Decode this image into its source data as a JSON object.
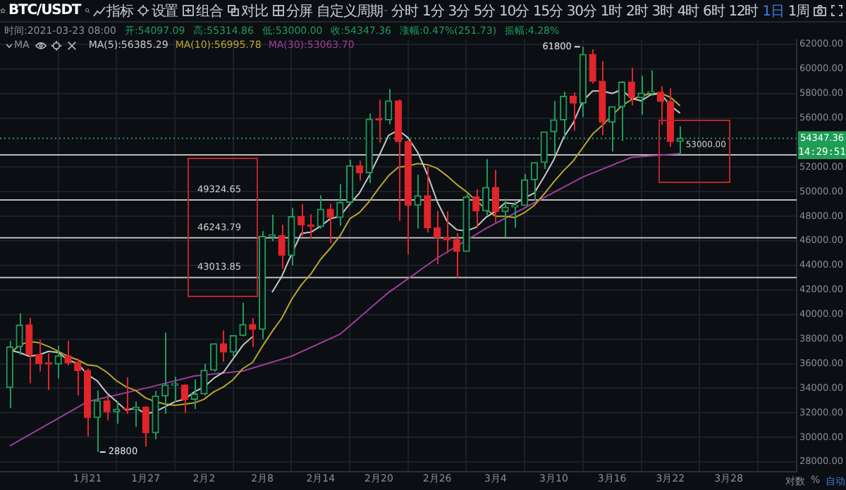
{
  "chart_data": {
    "type": "candlestick",
    "title": "BTC/USDT",
    "x": [
      "2021-01-13",
      "2021-01-14",
      "2021-01-15",
      "2021-01-16",
      "2021-01-17",
      "2021-01-18",
      "2021-01-19",
      "2021-01-20",
      "2021-01-21",
      "2021-01-22",
      "2021-01-23",
      "2021-01-24",
      "2021-01-25",
      "2021-01-26",
      "2021-01-27",
      "2021-01-28",
      "2021-01-29",
      "2021-01-30",
      "2021-01-31",
      "2021-02-01",
      "2021-02-02",
      "2021-02-03",
      "2021-02-04",
      "2021-02-05",
      "2021-02-06",
      "2021-02-07",
      "2021-02-08",
      "2021-02-09",
      "2021-02-10",
      "2021-02-11",
      "2021-02-12",
      "2021-02-13",
      "2021-02-14",
      "2021-02-15",
      "2021-02-16",
      "2021-02-17",
      "2021-02-18",
      "2021-02-19",
      "2021-02-20",
      "2021-02-21",
      "2021-02-22",
      "2021-02-23",
      "2021-02-24",
      "2021-02-25",
      "2021-02-26",
      "2021-02-27",
      "2021-02-28",
      "2021-03-01",
      "2021-03-02",
      "2021-03-03",
      "2021-03-04",
      "2021-03-05",
      "2021-03-06",
      "2021-03-07",
      "2021-03-08",
      "2021-03-09",
      "2021-03-10",
      "2021-03-11",
      "2021-03-12",
      "2021-03-13",
      "2021-03-14",
      "2021-03-15",
      "2021-03-16",
      "2021-03-17",
      "2021-03-18",
      "2021-03-19",
      "2021-03-20",
      "2021-03-21",
      "2021-03-22",
      "2021-03-23"
    ],
    "ohlc": [
      [
        34050,
        37850,
        32380,
        37371
      ],
      [
        37371,
        40100,
        36701,
        39144
      ],
      [
        39144,
        39747,
        34408,
        36742
      ],
      [
        36742,
        37950,
        35357,
        36016
      ],
      [
        36016,
        36852,
        33850,
        35965
      ],
      [
        35965,
        37469,
        34800,
        36642
      ],
      [
        36642,
        37850,
        35844,
        36070
      ],
      [
        36070,
        36415,
        33400,
        35442
      ],
      [
        35442,
        35600,
        30071,
        31613
      ],
      [
        31613,
        33826,
        28800,
        32985
      ],
      [
        32985,
        33456,
        31390,
        32068
      ],
      [
        32068,
        32944,
        31106,
        32289
      ],
      [
        32289,
        34876,
        31900,
        32254
      ],
      [
        32254,
        32921,
        30837,
        32467
      ],
      [
        32467,
        32557,
        29241,
        30366
      ],
      [
        30366,
        33783,
        29842,
        33364
      ],
      [
        33364,
        38531,
        31915,
        34252
      ],
      [
        34252,
        34934,
        32826,
        34262
      ],
      [
        34262,
        34342,
        32000,
        33092
      ],
      [
        33092,
        34717,
        32296,
        33526
      ],
      [
        33526,
        35984,
        33418,
        35466
      ],
      [
        35466,
        37662,
        35362,
        37618
      ],
      [
        37618,
        38708,
        36161,
        36936
      ],
      [
        36936,
        38310,
        36570,
        38290
      ],
      [
        38290,
        40955,
        38215,
        39186
      ],
      [
        39186,
        39700,
        37351,
        38795
      ],
      [
        38795,
        46794,
        37988,
        46374
      ],
      [
        46374,
        48142,
        45974,
        46420
      ],
      [
        46420,
        47310,
        43727,
        44807
      ],
      [
        44807,
        48678,
        43994,
        47969
      ],
      [
        47969,
        48985,
        46400,
        47287
      ],
      [
        47287,
        48150,
        46202,
        47153
      ],
      [
        47153,
        49707,
        47014,
        48577
      ],
      [
        48577,
        49010,
        45819,
        47911
      ],
      [
        47911,
        50620,
        47225,
        49133
      ],
      [
        49133,
        52618,
        48947,
        52119
      ],
      [
        52119,
        52530,
        50901,
        51552
      ],
      [
        51552,
        56368,
        50710,
        55906
      ],
      [
        55906,
        57500,
        54000,
        55841
      ],
      [
        55841,
        58352,
        55477,
        57408
      ],
      [
        57408,
        57508,
        47622,
        54087
      ],
      [
        54087,
        54183,
        44892,
        48891
      ],
      [
        48891,
        51374,
        47003,
        49677
      ],
      [
        49677,
        52041,
        46674,
        47073
      ],
      [
        47073,
        48424,
        44106,
        46276
      ],
      [
        46276,
        48395,
        45000,
        46106
      ],
      [
        46106,
        46638,
        43000,
        45135
      ],
      [
        45135,
        49790,
        45115,
        49587
      ],
      [
        49587,
        50200,
        47047,
        48440
      ],
      [
        48440,
        52640,
        48100,
        50349
      ],
      [
        50349,
        51773,
        47500,
        48374
      ],
      [
        48374,
        49448,
        46300,
        48751
      ],
      [
        48751,
        49200,
        47070,
        48882
      ],
      [
        48882,
        51450,
        48882,
        50971
      ],
      [
        50971,
        52402,
        49274,
        52375
      ],
      [
        52375,
        54895,
        51845,
        54884
      ],
      [
        54884,
        57387,
        53005,
        55851
      ],
      [
        55851,
        58150,
        54272,
        57773
      ],
      [
        57773,
        58081,
        54962,
        57221
      ],
      [
        57221,
        61800,
        56078,
        61188
      ],
      [
        61188,
        61597,
        58800,
        59000
      ],
      [
        59000,
        60633,
        54600,
        55664
      ],
      [
        55664,
        56938,
        53272,
        56926
      ],
      [
        56926,
        58999,
        54124,
        58924
      ],
      [
        58924,
        60100,
        57023,
        57644
      ],
      [
        57644,
        59450,
        56271,
        58030
      ],
      [
        58030,
        59880,
        57820,
        58102
      ],
      [
        58102,
        58589,
        55450,
        57351
      ],
      [
        57351,
        58430,
        53650,
        54083
      ],
      [
        54097.09,
        55314.86,
        53000,
        54347.36
      ]
    ],
    "colors": [
      "#1e9c5a",
      "#1e9c5a",
      "#e0252b",
      "#e0252b",
      "#e0252b",
      "#1e9c5a",
      "#e0252b",
      "#e0252b",
      "#e0252b",
      "#1e9c5a",
      "#e0252b",
      "#1e9c5a",
      "#e0252b",
      "#1e9c5a",
      "#e0252b",
      "#1e9c5a",
      "#1e9c5a",
      "#1e9c5a",
      "#e0252b",
      "#1e9c5a",
      "#1e9c5a",
      "#1e9c5a",
      "#e0252b",
      "#1e9c5a",
      "#1e9c5a",
      "#e0252b",
      "#1e9c5a",
      "#1e9c5a",
      "#e0252b",
      "#1e9c5a",
      "#e0252b",
      "#e0252b",
      "#1e9c5a",
      "#e0252b",
      "#1e9c5a",
      "#1e9c5a",
      "#e0252b",
      "#1e9c5a",
      "#e0252b",
      "#1e9c5a",
      "#e0252b",
      "#e0252b",
      "#1e9c5a",
      "#e0252b",
      "#e0252b",
      "#e0252b",
      "#e0252b",
      "#1e9c5a",
      "#e0252b",
      "#1e9c5a",
      "#e0252b",
      "#1e9c5a",
      "#1e9c5a",
      "#1e9c5a",
      "#1e9c5a",
      "#1e9c5a",
      "#1e9c5a",
      "#1e9c5a",
      "#e0252b",
      "#1e9c5a",
      "#e0252b",
      "#e0252b",
      "#1e9c5a",
      "#1e9c5a",
      "#e0252b",
      "#1e9c5a",
      "#1e9c5a",
      "#e0252b",
      "#e0252b",
      "#1e9c5a"
    ],
    "series": [
      {
        "type": "line",
        "color": "#c8c8c8",
        "values": [
          37100,
          36900,
          36600,
          36700,
          37000,
          36900,
          36300,
          36000,
          35100,
          34600,
          33600,
          32900,
          32200,
          32400,
          31900,
          32100,
          32500,
          32900,
          33100,
          33700,
          34100,
          34800,
          35300,
          36400,
          37500,
          38200,
          null,
          41800,
          43100,
          44900,
          46600,
          46700,
          47200,
          47800,
          48000,
          49000,
          49900,
          51300,
          52900,
          54600,
          55000,
          54400,
          53200,
          51400,
          49200,
          47600,
          46900,
          46800,
          47100,
          47900,
          48400,
          49100,
          49000,
          49500,
          49900,
          51200,
          52600,
          54400,
          55600,
          57400,
          58200,
          58200,
          58000,
          58300,
          57600,
          57400,
          57900,
          58000,
          57000,
          56400
        ]
      },
      {
        "type": "line",
        "color": "#b8a630",
        "values": [
          36800,
          37500,
          37800,
          37700,
          37400,
          37000,
          36600,
          36300,
          35900,
          35800,
          35300,
          34600,
          34100,
          33800,
          33200,
          32900,
          32700,
          32600,
          32700,
          32800,
          33100,
          33700,
          34100,
          34700,
          35600,
          36100,
          37400,
          38600,
          39700,
          41200,
          42400,
          43300,
          44500,
          45400,
          46400,
          47800,
          48300,
          49200,
          50300,
          51300,
          52000,
          52100,
          52300,
          52200,
          51900,
          51300,
          50600,
          50000,
          49300,
          48600,
          48000,
          48000,
          47900,
          48300,
          48900,
          49800,
          50800,
          51700,
          52500,
          53600,
          54700,
          55400,
          56200,
          57000,
          57500,
          57800,
          58000,
          58000,
          57700,
          57000
        ]
      },
      {
        "type": "line",
        "color": "#a03c9a",
        "x": [
          "2021-01-13",
          "2021-01-21",
          "2021-01-27",
          "2021-02-01",
          "2021-02-06",
          "2021-02-11",
          "2021-02-16",
          "2021-02-21",
          "2021-02-26",
          "2021-03-03",
          "2021-03-08",
          "2021-03-13",
          "2021-03-18",
          "2021-03-23"
        ],
        "values": [
          29300,
          32900,
          34000,
          35000,
          35400,
          36600,
          38400,
          41800,
          44600,
          47000,
          49100,
          51200,
          52800,
          53100
        ]
      }
    ],
    "xlim": [
      "2021-01-12",
      "2021-04-04"
    ],
    "xticks": [
      {
        "value": "2021-01-21",
        "label": "1月21"
      },
      {
        "value": "2021-01-27",
        "label": "1月27"
      },
      {
        "value": "2021-02-02",
        "label": "2月2"
      },
      {
        "value": "2021-02-08",
        "label": "2月8"
      },
      {
        "value": "2021-02-14",
        "label": "2月14"
      },
      {
        "value": "2021-02-20",
        "label": "2月20"
      },
      {
        "value": "2021-02-26",
        "label": "2月26"
      },
      {
        "value": "2021-03-04",
        "label": "3月4"
      },
      {
        "value": "2021-03-10",
        "label": "3月10"
      },
      {
        "value": "2021-03-16",
        "label": "3月16"
      },
      {
        "value": "2021-03-22",
        "label": "3月22"
      },
      {
        "value": "2021-03-28",
        "label": "3月28"
      }
    ],
    "ylim": [
      27200,
      62400
    ],
    "yticks": [
      {
        "value": 28000,
        "label": "28000.00"
      },
      {
        "value": 30000,
        "label": "30000.00"
      },
      {
        "value": 32000,
        "label": "32000.00"
      },
      {
        "value": 34000,
        "label": "34000.00"
      },
      {
        "value": 36000,
        "label": "36000.00"
      },
      {
        "value": 38000,
        "label": "38000.00"
      },
      {
        "value": 40000,
        "label": "40000.00"
      },
      {
        "value": 42000,
        "label": "42000.00"
      },
      {
        "value": 44000,
        "label": "44000.00"
      },
      {
        "value": 46000,
        "label": "46000.00"
      },
      {
        "value": 48000,
        "label": "48000.00"
      },
      {
        "value": 50000,
        "label": "50000.00"
      },
      {
        "value": 52000,
        "label": "52000.00"
      },
      {
        "value": 56000,
        "label": "56000.00"
      },
      {
        "value": 58000,
        "label": "58000.00"
      },
      {
        "value": 60000,
        "label": "60000.00"
      },
      {
        "value": 62000,
        "label": "62000.00"
      }
    ],
    "grid": true,
    "ref_lines": [
      {
        "axis": "y",
        "value": 49324.65,
        "label": "49324.65",
        "color": "#bdbdbd"
      },
      {
        "axis": "y",
        "value": 46243.79,
        "label": "46243.79",
        "color": "#bdbdbd"
      },
      {
        "axis": "y",
        "value": 43013.85,
        "label": "43013.85",
        "color": "#bdbdbd"
      },
      {
        "axis": "y",
        "value": 53000,
        "label": "53000.00",
        "color": "#bdbdbd"
      },
      {
        "axis": "y",
        "value": 54347.36,
        "label": "54347.36",
        "color": "#1f9d55",
        "line_style": "dotted"
      }
    ],
    "annotations": [
      "指标",
      "设置",
      "组合",
      "对比",
      "分屏",
      "自定义周期",
      "分时",
      "1分",
      "3分",
      "5分",
      "10分",
      "15分",
      "30分",
      "1时",
      "2时",
      "3时",
      "4时",
      "6时",
      "12时",
      "1日",
      "1周",
      "时间:2021-03-23 08:00",
      "开:54097.09",
      "高:55314.86",
      "低:53000.00",
      "收:54347.36",
      "涨幅:0.47%(251.73)",
      "振幅:4.28%",
      "MA",
      "MA(5):56385.29",
      "MA(10):56995.78",
      "MA(30):53063.70",
      "14:29:51",
      "对数",
      "%",
      "自动",
      {
        "text": "61800",
        "x": "2021-03-13",
        "y": 61800
      },
      {
        "text": "28800",
        "x": "2021-01-22",
        "y": 28800
      }
    ],
    "legend": false
  }
}
